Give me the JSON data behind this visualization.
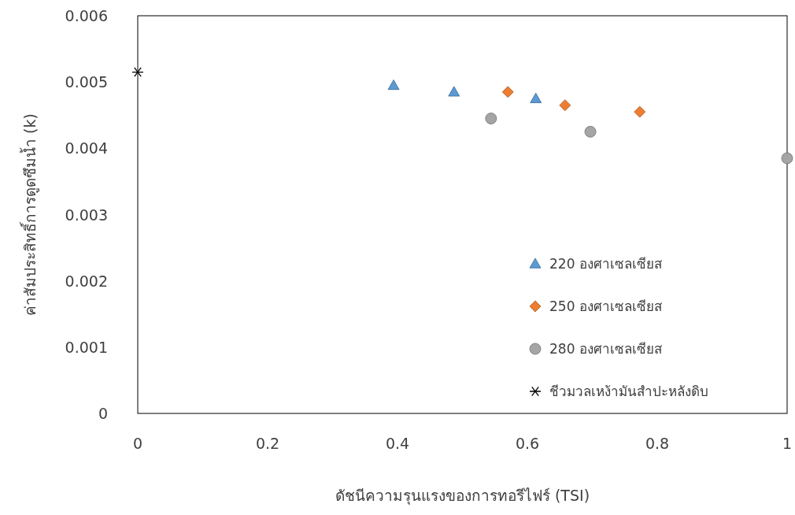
{
  "chart_data": {
    "type": "scatter",
    "xlabel": "ดัชนีความรุนแรงของการทอรีไฟร์ (TSI)",
    "ylabel": "ค่าสัมประสิทธิ์การดูดซึมน้ำ (k)",
    "xlim": [
      0,
      1
    ],
    "xticks": [
      0,
      0.2,
      0.4,
      0.6,
      0.8,
      1
    ],
    "ylim": [
      0,
      0.006
    ],
    "yticks": [
      0,
      0.001,
      0.002,
      0.003,
      0.004,
      0.005,
      0.006
    ],
    "grid": false,
    "legend": "bottom right",
    "series": [
      {
        "name": "220 องศาเซลเซียส",
        "color": "#5b9bd5",
        "marker": "triangle",
        "x": [
          0.394,
          0.487,
          0.613
        ],
        "values": [
          0.00495,
          0.00485,
          0.00475
        ]
      },
      {
        "name": "250 องศาเซลเซียส",
        "color": "#ed7d31",
        "marker": "diamond",
        "x": [
          0.57,
          0.658,
          0.773
        ],
        "values": [
          0.00485,
          0.00465,
          0.00455
        ]
      },
      {
        "name": "280 องศาเซลเซียส",
        "color": "#a5a5a5",
        "marker": "circle",
        "x": [
          0.544,
          0.697,
          1
        ],
        "values": [
          0.00445,
          0.00425,
          0.00385
        ]
      },
      {
        "name": "ชีวมวลเหง้ามันสำปะหลังดิบ",
        "color": "#000000",
        "marker": "cross",
        "x": [
          0
        ],
        "values": [
          0.00515
        ]
      }
    ]
  }
}
